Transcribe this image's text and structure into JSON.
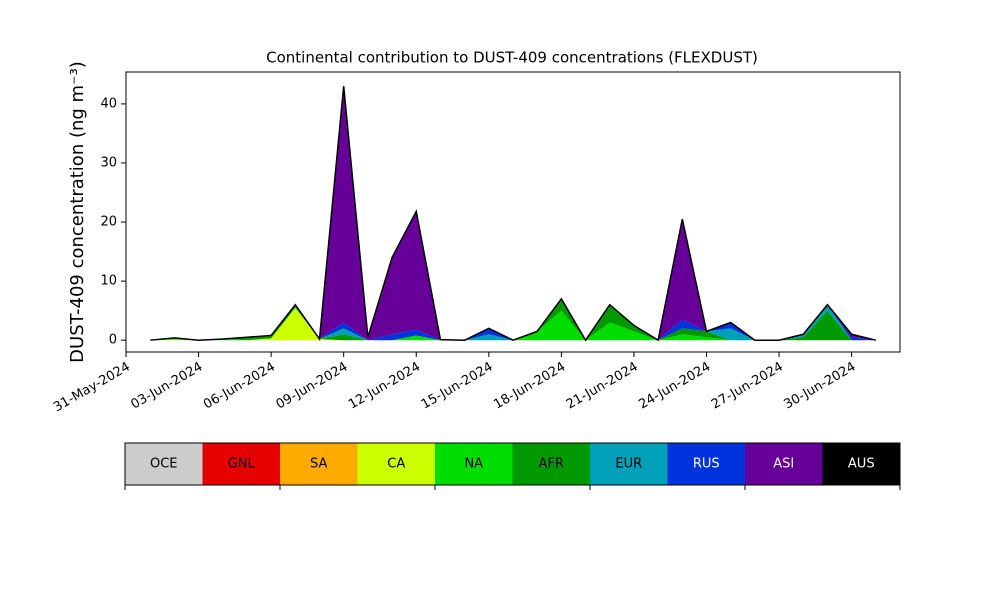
{
  "chart_data": {
    "type": "stacked_area",
    "title": "Continental contribution to DUST-409 concentrations (FLEXDUST)",
    "y_label": "DUST-409 concentration (ng m⁻³)",
    "x": [
      "2024-06-01",
      "2024-06-02",
      "2024-06-03",
      "2024-06-04",
      "2024-06-05",
      "2024-06-06",
      "2024-06-07",
      "2024-06-08",
      "2024-06-09",
      "2024-06-10",
      "2024-06-11",
      "2024-06-12",
      "2024-06-13",
      "2024-06-14",
      "2024-06-15",
      "2024-06-16",
      "2024-06-17",
      "2024-06-18",
      "2024-06-19",
      "2024-06-20",
      "2024-06-21",
      "2024-06-22",
      "2024-06-23",
      "2024-06-24",
      "2024-06-25",
      "2024-06-26",
      "2024-06-27",
      "2024-06-28",
      "2024-06-29",
      "2024-06-30",
      "2024-07-01"
    ],
    "xlim": [
      "2024-05-31",
      "2024-07-02"
    ],
    "xticks": [
      {
        "value": "2024-05-31",
        "label": "31-May-2024"
      },
      {
        "value": "2024-06-03",
        "label": "03-Jun-2024"
      },
      {
        "value": "2024-06-06",
        "label": "06-Jun-2024"
      },
      {
        "value": "2024-06-09",
        "label": "09-Jun-2024"
      },
      {
        "value": "2024-06-12",
        "label": "12-Jun-2024"
      },
      {
        "value": "2024-06-15",
        "label": "15-Jun-2024"
      },
      {
        "value": "2024-06-18",
        "label": "18-Jun-2024"
      },
      {
        "value": "2024-06-21",
        "label": "21-Jun-2024"
      },
      {
        "value": "2024-06-24",
        "label": "24-Jun-2024"
      },
      {
        "value": "2024-06-27",
        "label": "27-Jun-2024"
      },
      {
        "value": "2024-06-30",
        "label": "30-Jun-2024"
      }
    ],
    "ylim": [
      -2,
      45.4
    ],
    "yticks": [
      0,
      10,
      20,
      30,
      40
    ],
    "series": [
      {
        "name": "OCE",
        "color": "#cccccc",
        "values": [
          0,
          0,
          0,
          0,
          0,
          0,
          0,
          0,
          0,
          0,
          0,
          0,
          0,
          0,
          0,
          0,
          0,
          0,
          0,
          0,
          0,
          0,
          0,
          0,
          0,
          0,
          0,
          0,
          0,
          0,
          0
        ]
      },
      {
        "name": "GNL",
        "color": "#e60000",
        "values": [
          0,
          0,
          0,
          0,
          0,
          0,
          0,
          0,
          0,
          0,
          0,
          0,
          0,
          0,
          0,
          0,
          0,
          0,
          0,
          0,
          0,
          0,
          0,
          0,
          0,
          0,
          0,
          0,
          0,
          0,
          0
        ]
      },
      {
        "name": "SA",
        "color": "#ffaa00",
        "values": [
          0,
          0,
          0,
          0,
          0,
          0,
          0,
          0,
          0,
          0,
          0,
          0,
          0,
          0,
          0,
          0,
          0,
          0,
          0,
          0,
          0,
          0,
          0,
          0,
          0,
          0,
          0,
          0,
          0,
          0,
          0
        ]
      },
      {
        "name": "CA",
        "color": "#ccff00",
        "values": [
          0,
          0.1,
          0,
          0,
          0,
          0.3,
          5.5,
          0.2,
          0,
          0,
          0,
          0,
          0,
          0,
          0,
          0,
          0,
          0,
          0,
          0,
          0,
          0,
          0,
          0,
          0,
          0,
          0,
          0,
          0,
          0,
          0
        ]
      },
      {
        "name": "NA",
        "color": "#00dd00",
        "values": [
          0,
          0.3,
          0,
          0.2,
          0,
          0,
          0,
          0,
          0,
          0,
          0,
          0.8,
          0,
          0,
          0,
          0,
          1.5,
          5,
          0,
          3,
          1.5,
          0,
          1,
          0.5,
          0,
          0,
          0,
          0,
          0,
          0,
          0
        ]
      },
      {
        "name": "AFR",
        "color": "#009900",
        "values": [
          0,
          0,
          0,
          0,
          0.5,
          0.5,
          0.5,
          0,
          1,
          0,
          0,
          0,
          0,
          0,
          0,
          0,
          0,
          2,
          0,
          3,
          1,
          0,
          1,
          1,
          0,
          0,
          0,
          0.5,
          5,
          0,
          0
        ]
      },
      {
        "name": "EUR",
        "color": "#00a0b8",
        "values": [
          0,
          0,
          0,
          0,
          0,
          0,
          0,
          0,
          1,
          0,
          0,
          0,
          0,
          0,
          1,
          0,
          0,
          0,
          0,
          0,
          0,
          0,
          0,
          0,
          2,
          0,
          0,
          0.5,
          1,
          0,
          0
        ]
      },
      {
        "name": "RUS",
        "color": "#0033dd",
        "values": [
          0,
          0,
          0,
          0,
          0,
          0,
          0,
          0,
          1,
          0,
          1,
          1,
          0,
          0,
          1,
          0,
          0,
          0,
          0,
          0,
          0,
          0,
          1.5,
          0,
          1,
          0,
          0,
          0,
          0,
          0.5,
          0
        ]
      },
      {
        "name": "ASI",
        "color": "#660099",
        "values": [
          0,
          0,
          0,
          0,
          0,
          0,
          0,
          0,
          40,
          0.5,
          13,
          20,
          0.1,
          0,
          0,
          0,
          0,
          0,
          0,
          0,
          0,
          0,
          17,
          0,
          0,
          0,
          0,
          0,
          0,
          0.5,
          0
        ]
      },
      {
        "name": "AUS",
        "color": "#000000",
        "values": [
          0,
          0,
          0,
          0,
          0,
          0,
          0,
          0,
          0,
          0,
          0,
          0,
          0,
          0,
          0,
          0,
          0,
          0,
          0,
          0,
          0,
          0,
          0,
          0,
          0,
          0,
          0,
          0,
          0,
          0,
          0
        ]
      }
    ]
  }
}
